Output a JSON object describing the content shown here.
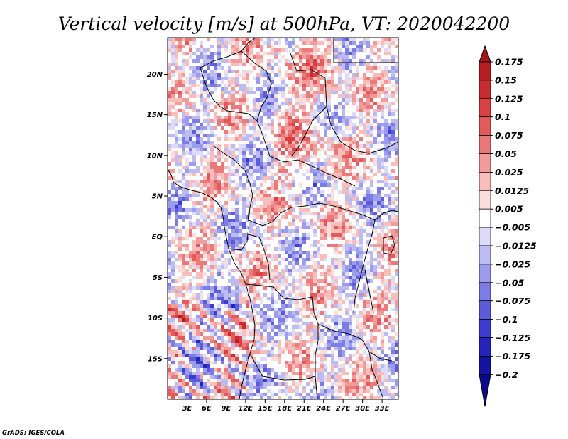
{
  "title": "Vertical velocity [m/s] at 500hPa, VT: 2020042200",
  "credit": "GrADS: IGES/COLA",
  "map": {
    "lon_range": [
      0,
      35.5
    ],
    "lat_range": [
      -20,
      24.5
    ],
    "lat_ticks": [
      {
        "value": 20,
        "label": "20N"
      },
      {
        "value": 15,
        "label": "15N"
      },
      {
        "value": 10,
        "label": "10N"
      },
      {
        "value": 5,
        "label": "5N"
      },
      {
        "value": 0,
        "label": "EQ"
      },
      {
        "value": -5,
        "label": "5S"
      },
      {
        "value": -10,
        "label": "10S"
      },
      {
        "value": -15,
        "label": "15S"
      }
    ],
    "lon_ticks": [
      {
        "value": 3,
        "label": "3E"
      },
      {
        "value": 6,
        "label": "6E"
      },
      {
        "value": 9,
        "label": "9E"
      },
      {
        "value": 12,
        "label": "12E"
      },
      {
        "value": 15,
        "label": "15E"
      },
      {
        "value": 18,
        "label": "18E"
      },
      {
        "value": 21,
        "label": "21E"
      },
      {
        "value": 24,
        "label": "24E"
      },
      {
        "value": 27,
        "label": "27E"
      },
      {
        "value": 30,
        "label": "30E"
      },
      {
        "value": 33,
        "label": "33E"
      }
    ]
  },
  "colorbar": {
    "labels": [
      "0.175",
      "0.15",
      "0.125",
      "0.1",
      "0.075",
      "0.05",
      "0.025",
      "0.0125",
      "0.005",
      "−0.005",
      "−0.0125",
      "−0.025",
      "−0.05",
      "−0.075",
      "−0.1",
      "−0.125",
      "−0.175",
      "−0.2"
    ],
    "colors": [
      "#a01418",
      "#b41e22",
      "#c72d30",
      "#d84044",
      "#e25a5c",
      "#ea7a7a",
      "#f19c9a",
      "#f7bebb",
      "#fbdedc",
      "#ffffff",
      "#dcdcf8",
      "#bcbcf3",
      "#9c9cec",
      "#7c7ce4",
      "#5c5cdb",
      "#3c3cce",
      "#2424b8",
      "#1414a0",
      "#0a0a8c"
    ]
  }
}
